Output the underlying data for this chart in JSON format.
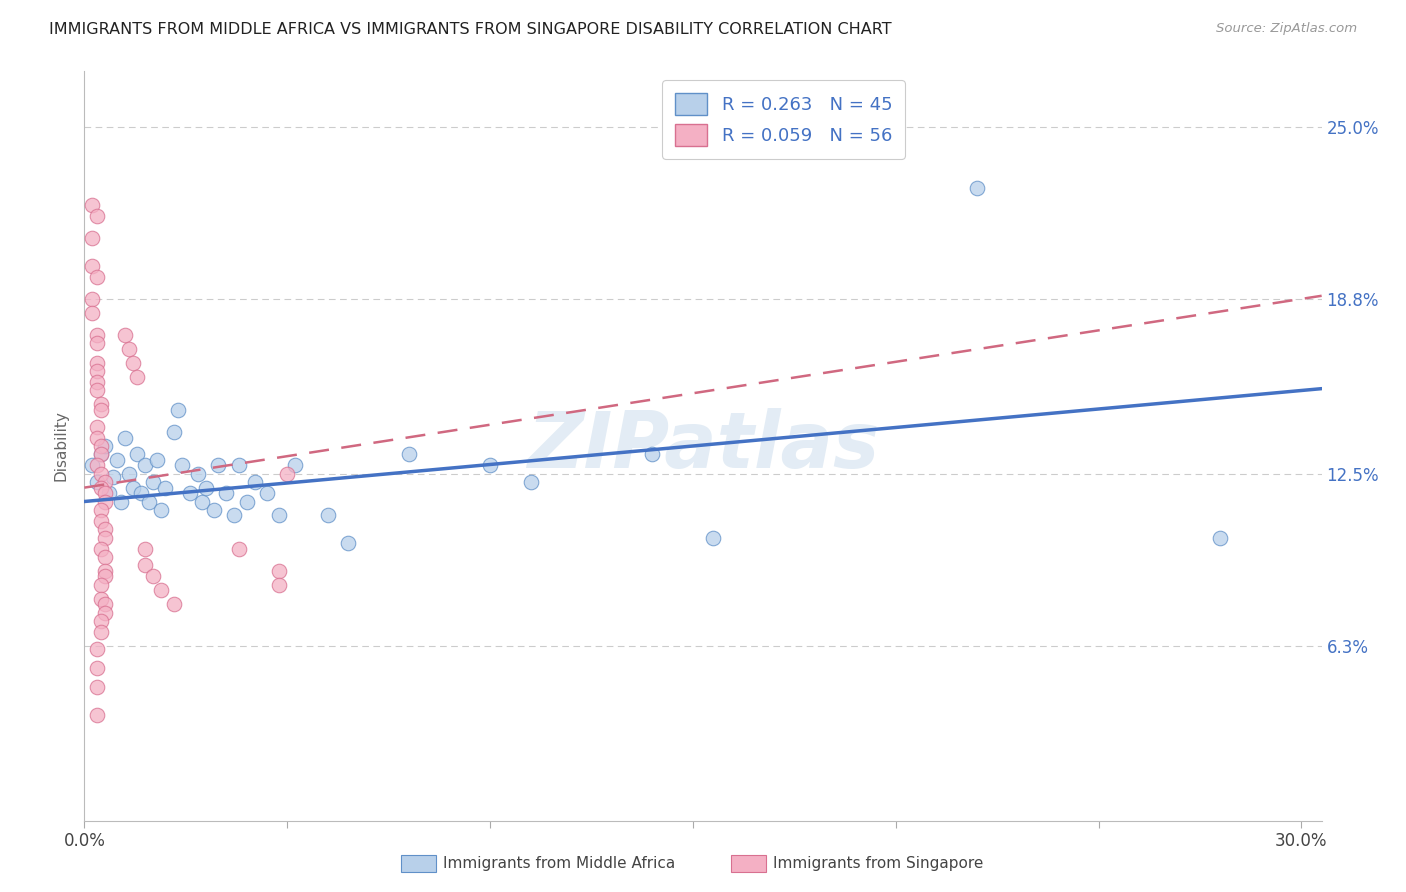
{
  "title": "IMMIGRANTS FROM MIDDLE AFRICA VS IMMIGRANTS FROM SINGAPORE DISABILITY CORRELATION CHART",
  "source": "Source: ZipAtlas.com",
  "ylabel": "Disability",
  "ytick_vals": [
    0.063,
    0.125,
    0.188,
    0.25
  ],
  "ytick_labels": [
    "6.3%",
    "12.5%",
    "18.8%",
    "25.0%"
  ],
  "xtick_vals": [
    0.0,
    0.05,
    0.1,
    0.15,
    0.2,
    0.25,
    0.3
  ],
  "xlim": [
    0.0,
    0.305
  ],
  "ylim": [
    0.0,
    0.27
  ],
  "legend_r1": "R = 0.263",
  "legend_n1": "N = 45",
  "legend_r2": "R = 0.059",
  "legend_n2": "N = 56",
  "label1": "Immigrants from Middle Africa",
  "label2": "Immigrants from Singapore",
  "watermark": "ZIPatlas",
  "color_blue_fill": "#b8d0ea",
  "color_blue_edge": "#6090c8",
  "color_pink_fill": "#f4b0c4",
  "color_pink_edge": "#d87090",
  "color_blue_line": "#4472c4",
  "color_pink_line": "#d06880",
  "color_legend_text": "#4472c4",
  "blue_points": [
    [
      0.002,
      0.128
    ],
    [
      0.003,
      0.122
    ],
    [
      0.004,
      0.132
    ],
    [
      0.005,
      0.135
    ],
    [
      0.006,
      0.118
    ],
    [
      0.007,
      0.124
    ],
    [
      0.008,
      0.13
    ],
    [
      0.009,
      0.115
    ],
    [
      0.01,
      0.138
    ],
    [
      0.011,
      0.125
    ],
    [
      0.012,
      0.12
    ],
    [
      0.013,
      0.132
    ],
    [
      0.014,
      0.118
    ],
    [
      0.015,
      0.128
    ],
    [
      0.016,
      0.115
    ],
    [
      0.017,
      0.122
    ],
    [
      0.018,
      0.13
    ],
    [
      0.019,
      0.112
    ],
    [
      0.02,
      0.12
    ],
    [
      0.022,
      0.14
    ],
    [
      0.023,
      0.148
    ],
    [
      0.024,
      0.128
    ],
    [
      0.026,
      0.118
    ],
    [
      0.028,
      0.125
    ],
    [
      0.029,
      0.115
    ],
    [
      0.03,
      0.12
    ],
    [
      0.032,
      0.112
    ],
    [
      0.033,
      0.128
    ],
    [
      0.035,
      0.118
    ],
    [
      0.037,
      0.11
    ],
    [
      0.038,
      0.128
    ],
    [
      0.04,
      0.115
    ],
    [
      0.042,
      0.122
    ],
    [
      0.045,
      0.118
    ],
    [
      0.048,
      0.11
    ],
    [
      0.052,
      0.128
    ],
    [
      0.06,
      0.11
    ],
    [
      0.065,
      0.1
    ],
    [
      0.08,
      0.132
    ],
    [
      0.1,
      0.128
    ],
    [
      0.11,
      0.122
    ],
    [
      0.14,
      0.132
    ],
    [
      0.155,
      0.102
    ],
    [
      0.22,
      0.228
    ],
    [
      0.28,
      0.102
    ]
  ],
  "pink_points": [
    [
      0.002,
      0.222
    ],
    [
      0.003,
      0.218
    ],
    [
      0.002,
      0.21
    ],
    [
      0.002,
      0.2
    ],
    [
      0.003,
      0.196
    ],
    [
      0.002,
      0.188
    ],
    [
      0.002,
      0.183
    ],
    [
      0.003,
      0.175
    ],
    [
      0.003,
      0.172
    ],
    [
      0.003,
      0.165
    ],
    [
      0.003,
      0.162
    ],
    [
      0.003,
      0.158
    ],
    [
      0.003,
      0.155
    ],
    [
      0.004,
      0.15
    ],
    [
      0.004,
      0.148
    ],
    [
      0.003,
      0.142
    ],
    [
      0.003,
      0.138
    ],
    [
      0.004,
      0.135
    ],
    [
      0.004,
      0.132
    ],
    [
      0.003,
      0.128
    ],
    [
      0.004,
      0.125
    ],
    [
      0.005,
      0.122
    ],
    [
      0.004,
      0.12
    ],
    [
      0.005,
      0.118
    ],
    [
      0.005,
      0.115
    ],
    [
      0.004,
      0.112
    ],
    [
      0.004,
      0.108
    ],
    [
      0.005,
      0.105
    ],
    [
      0.005,
      0.102
    ],
    [
      0.004,
      0.098
    ],
    [
      0.005,
      0.095
    ],
    [
      0.005,
      0.09
    ],
    [
      0.005,
      0.088
    ],
    [
      0.004,
      0.085
    ],
    [
      0.004,
      0.08
    ],
    [
      0.005,
      0.078
    ],
    [
      0.005,
      0.075
    ],
    [
      0.004,
      0.072
    ],
    [
      0.004,
      0.068
    ],
    [
      0.003,
      0.062
    ],
    [
      0.003,
      0.055
    ],
    [
      0.003,
      0.048
    ],
    [
      0.003,
      0.038
    ],
    [
      0.01,
      0.175
    ],
    [
      0.011,
      0.17
    ],
    [
      0.012,
      0.165
    ],
    [
      0.013,
      0.16
    ],
    [
      0.015,
      0.098
    ],
    [
      0.015,
      0.092
    ],
    [
      0.017,
      0.088
    ],
    [
      0.019,
      0.083
    ],
    [
      0.022,
      0.078
    ],
    [
      0.038,
      0.098
    ],
    [
      0.048,
      0.09
    ],
    [
      0.048,
      0.085
    ],
    [
      0.05,
      0.125
    ]
  ]
}
